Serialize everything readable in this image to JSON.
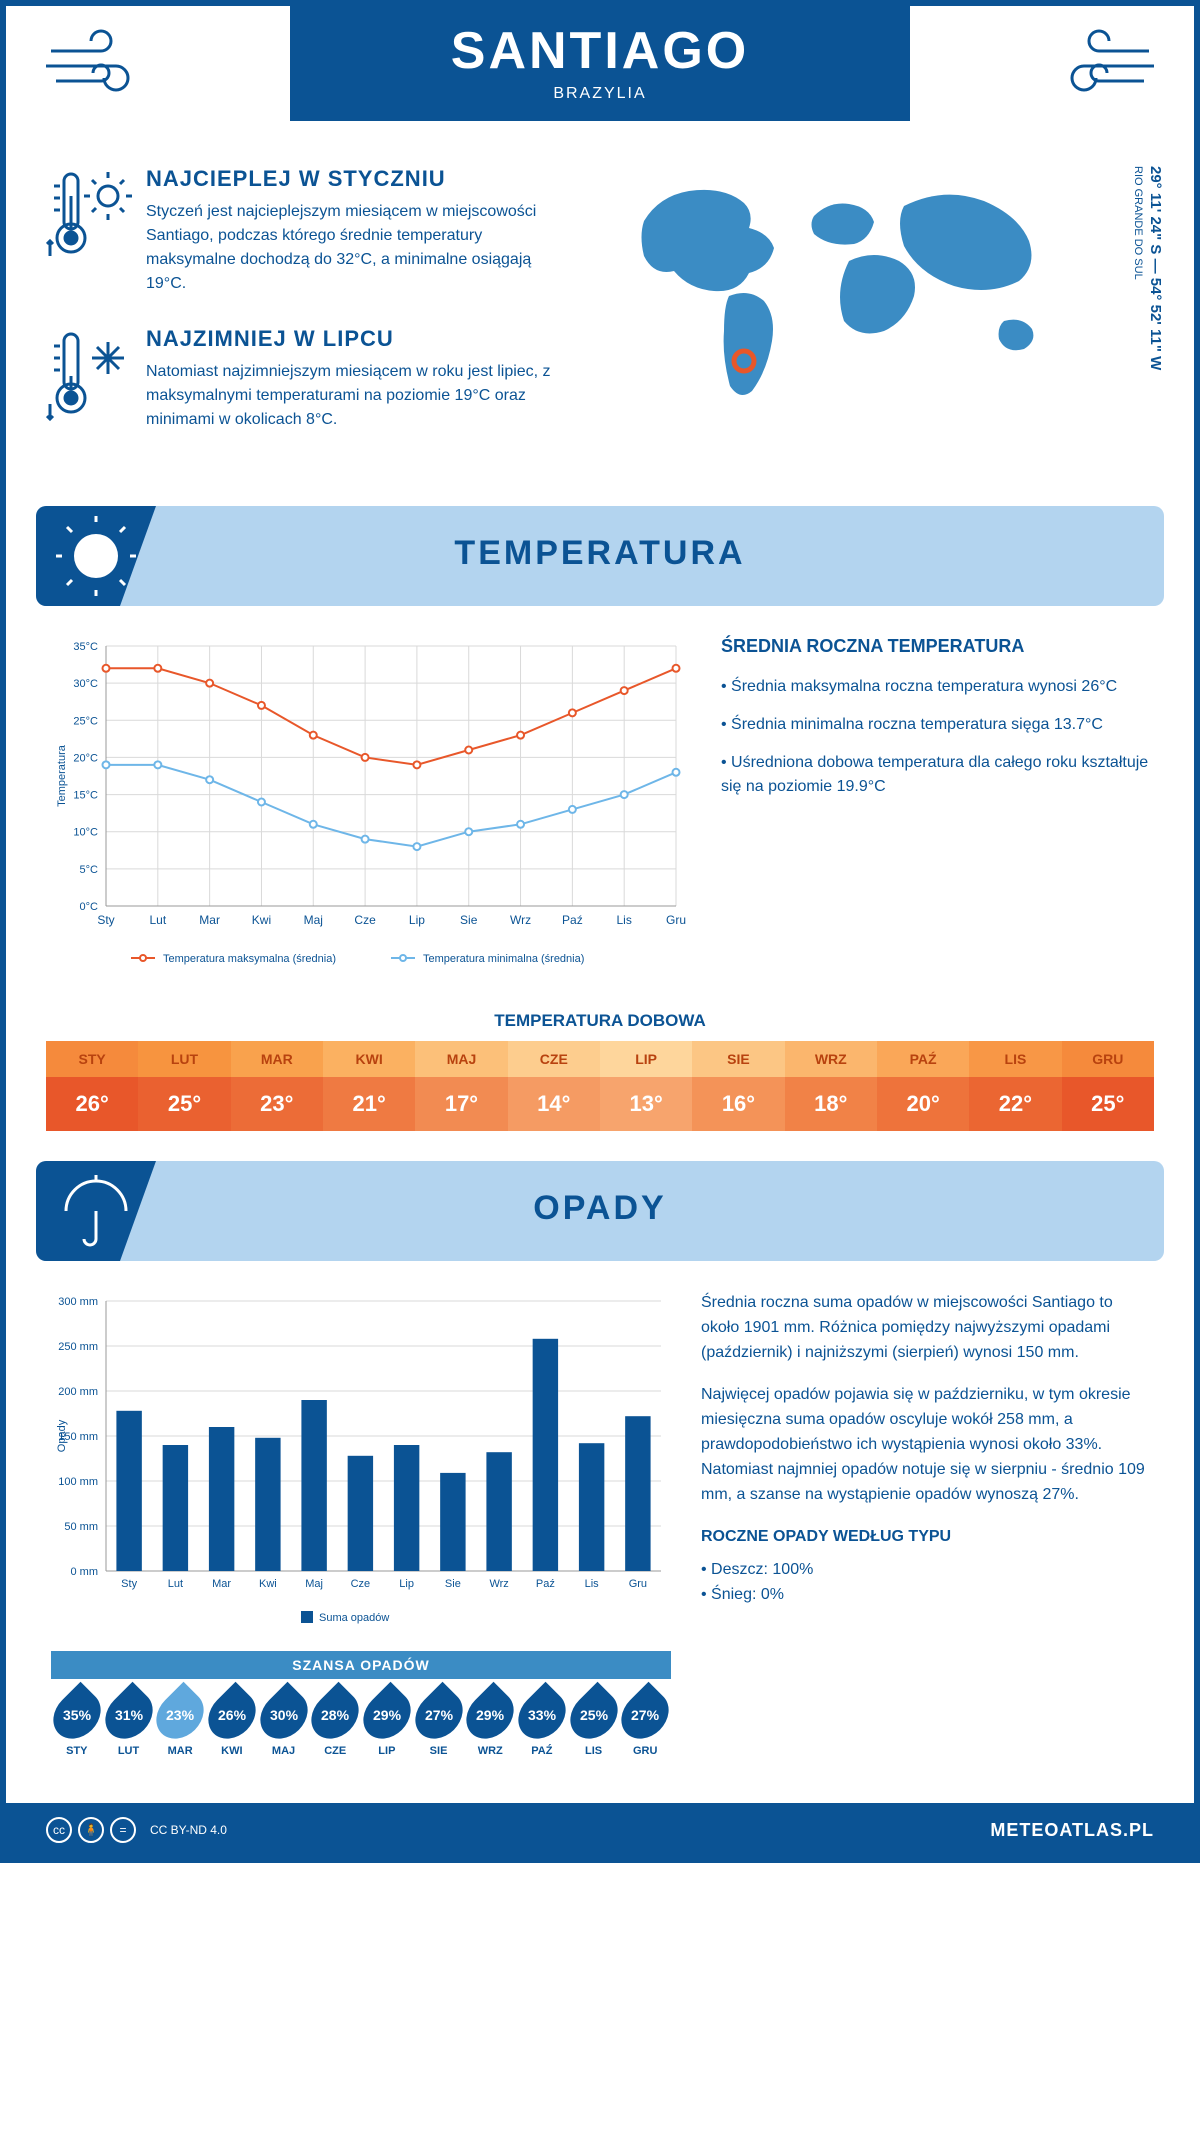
{
  "header": {
    "city": "SANTIAGO",
    "country": "BRAZYLIA"
  },
  "coords": "29° 11' 24\" S — 54° 52' 11\" W",
  "region": "RIO GRANDE DO SUL",
  "hot": {
    "title": "NAJCIEPLEJ W STYCZNIU",
    "body": "Styczeń jest najcieplejszym miesiącem w miejscowości Santiago, podczas którego średnie temperatury maksymalne dochodzą do 32°C, a minimalne osiągają 19°C."
  },
  "cold": {
    "title": "NAJZIMNIEJ W LIPCU",
    "body": "Natomiast najzimniejszym miesiącem w roku jest lipiec, z maksymalnymi temperaturami na poziomie 19°C oraz minimami w okolicach 8°C."
  },
  "sections": {
    "temp": "TEMPERATURA",
    "precip": "OPADY"
  },
  "months": [
    "Sty",
    "Lut",
    "Mar",
    "Kwi",
    "Maj",
    "Cze",
    "Lip",
    "Sie",
    "Wrz",
    "Paź",
    "Lis",
    "Gru"
  ],
  "months_upper": [
    "STY",
    "LUT",
    "MAR",
    "KWI",
    "MAJ",
    "CZE",
    "LIP",
    "SIE",
    "WRZ",
    "PAŹ",
    "LIS",
    "GRU"
  ],
  "tempChart": {
    "ylabel": "Temperatura",
    "ylim": [
      0,
      35
    ],
    "ytick_step": 5,
    "max": {
      "label": "Temperatura maksymalna (średnia)",
      "color": "#e8572a",
      "values": [
        32,
        32,
        30,
        27,
        23,
        20,
        19,
        21,
        23,
        26,
        29,
        32
      ]
    },
    "min": {
      "label": "Temperatura minimalna (średnia)",
      "color": "#6eb6e8",
      "values": [
        19,
        19,
        17,
        14,
        11,
        9,
        8,
        10,
        11,
        13,
        15,
        18
      ]
    },
    "grid_color": "#d9d9d9"
  },
  "tempInfo": {
    "title": "ŚREDNIA ROCZNA TEMPERATURA",
    "lines": [
      "• Średnia maksymalna roczna temperatura wynosi 26°C",
      "• Średnia minimalna roczna temperatura sięga 13.7°C",
      "• Uśredniona dobowa temperatura dla całego roku kształtuje się na poziomie 19.9°C"
    ]
  },
  "dailyTitle": "TEMPERATURA DOBOWA",
  "dailyTemp": {
    "values": [
      "26°",
      "25°",
      "23°",
      "21°",
      "17°",
      "14°",
      "13°",
      "16°",
      "18°",
      "20°",
      "22°",
      "25°"
    ],
    "header_colors": [
      "#f58a3c",
      "#f7943f",
      "#f9a24d",
      "#fbb161",
      "#fcc079",
      "#fdcd8e",
      "#fed69c",
      "#fcc684",
      "#fbb66d",
      "#faa758",
      "#f89746",
      "#f58a3c"
    ],
    "value_colors": [
      "#e8572a",
      "#ea6130",
      "#ec6c37",
      "#ef7a42",
      "#f28b52",
      "#f59b63",
      "#f7a46d",
      "#f49358",
      "#f18247",
      "#ee733b",
      "#eb6632",
      "#e8572a"
    ]
  },
  "precipChart": {
    "ylabel": "Opady",
    "legend": "Suma opadów",
    "ylim": [
      0,
      300
    ],
    "ytick_step": 50,
    "values": [
      178,
      140,
      160,
      148,
      190,
      128,
      140,
      109,
      132,
      258,
      142,
      172
    ],
    "bar_color": "#0b5394"
  },
  "precipText": {
    "p1": "Średnia roczna suma opadów w miejscowości Santiago to około 1901 mm. Różnica pomiędzy najwyższymi opadami (październik) i najniższymi (sierpień) wynosi 150 mm.",
    "p2": "Najwięcej opadów pojawia się w październiku, w tym okresie miesięczna suma opadów oscyluje wokół 258 mm, a prawdopodobieństwo ich wystąpienia wynosi około 33%. Natomiast najmniej opadów notuje się w sierpniu - średnio 109 mm, a szanse na wystąpienie opadów wynoszą 27%."
  },
  "chance": {
    "title": "SZANSA OPADÓW",
    "values": [
      "35%",
      "31%",
      "23%",
      "26%",
      "30%",
      "28%",
      "29%",
      "27%",
      "29%",
      "33%",
      "25%",
      "27%"
    ],
    "highlight_index": 2,
    "drop_dark": "#0b5394",
    "drop_light": "#5fa8dd"
  },
  "byType": {
    "title": "ROCZNE OPADY WEDŁUG TYPU",
    "lines": [
      "• Deszcz: 100%",
      "• Śnieg: 0%"
    ]
  },
  "footer": {
    "license": "CC BY-ND 4.0",
    "brand": "METEOATLAS.PL"
  }
}
